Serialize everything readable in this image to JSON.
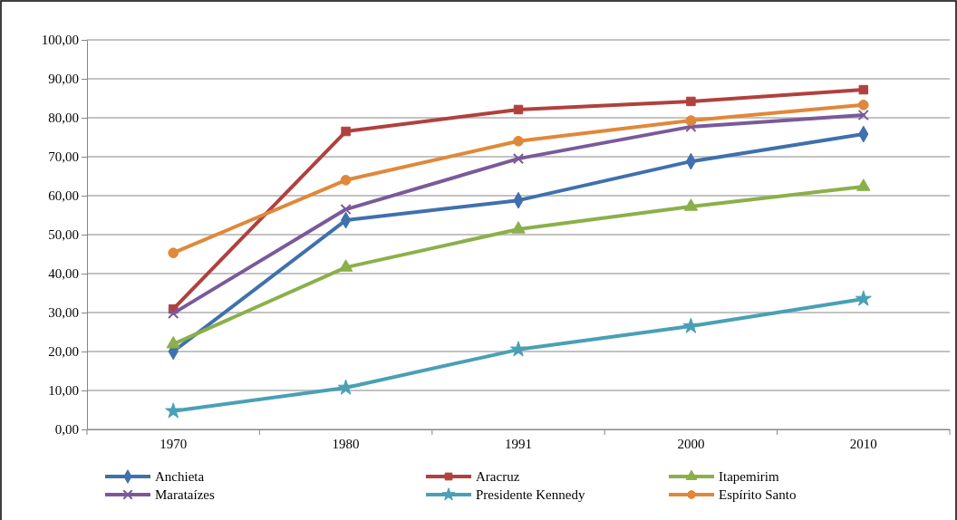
{
  "chart_data": {
    "type": "line",
    "categories": [
      "1970",
      "1980",
      "1991",
      "2000",
      "2010"
    ],
    "ylim": [
      0,
      100
    ],
    "yticks": [
      {
        "value": 0,
        "label": "0,00"
      },
      {
        "value": 10,
        "label": "10,00"
      },
      {
        "value": 20,
        "label": "20,00"
      },
      {
        "value": 30,
        "label": "30,00"
      },
      {
        "value": 40,
        "label": "40,00"
      },
      {
        "value": 50,
        "label": "50,00"
      },
      {
        "value": 60,
        "label": "60,00"
      },
      {
        "value": 70,
        "label": "70,00"
      },
      {
        "value": 80,
        "label": "80,00"
      },
      {
        "value": 90,
        "label": "90,00"
      },
      {
        "value": 100,
        "label": "100,00"
      }
    ],
    "grid": "y",
    "legend": "bottom",
    "line_style": "solid",
    "series": [
      {
        "name": "Anchieta",
        "color": "#4070ad",
        "marker": "diamond",
        "values": [
          20.0,
          53.7,
          58.8,
          68.8,
          75.8
        ]
      },
      {
        "name": "Aracruz",
        "color": "#b0413e",
        "marker": "square",
        "values": [
          30.9,
          76.5,
          82.1,
          84.2,
          87.2
        ]
      },
      {
        "name": "Itapemirim",
        "color": "#8bb04a",
        "marker": "triangle",
        "values": [
          21.9,
          41.6,
          51.4,
          57.2,
          62.3
        ]
      },
      {
        "name": "Marataízes",
        "color": "#7a5a9a",
        "marker": "cross",
        "values": [
          29.8,
          56.5,
          69.5,
          77.7,
          80.7
        ]
      },
      {
        "name": "Presidente Kennedy",
        "color": "#4aa0b5",
        "marker": "star",
        "values": [
          4.7,
          10.7,
          20.5,
          26.5,
          33.5
        ]
      },
      {
        "name": "Espírito Santo",
        "color": "#e0883a",
        "marker": "circle",
        "values": [
          45.3,
          64.0,
          74.0,
          79.3,
          83.3
        ]
      }
    ]
  }
}
